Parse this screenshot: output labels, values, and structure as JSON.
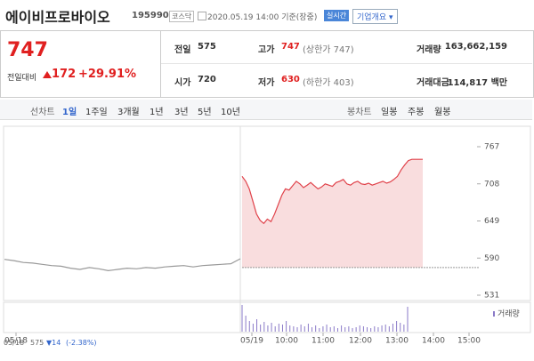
{
  "header": {
    "name": "에이비프로바이오",
    "code": "195990",
    "market": "코스닥",
    "datetime": "2020.05.19 14:00 기준(장중)",
    "realtime": "실시간",
    "company": "기업개요"
  },
  "quote": {
    "price": "747",
    "change_label": "전일대비",
    "change": "172",
    "rate": "+29.91%"
  },
  "stats": [
    [
      {
        "label": "전일",
        "value": "575"
      },
      {
        "label": "고가",
        "value": "747",
        "note": "(상한가 747)"
      },
      {
        "label": "거래량",
        "value": "163,662,159"
      }
    ],
    [
      {
        "label": "시가",
        "value": "720"
      },
      {
        "label": "저가",
        "value": "630",
        "note": "(하한가 403)"
      },
      {
        "label": "거래대금",
        "value": "114,817 백만"
      }
    ]
  ],
  "tabs": {
    "line": "선차트",
    "periods": [
      "1일",
      "1주일",
      "3개월",
      "1년",
      "3년",
      "5년",
      "10년"
    ],
    "candle": "봉차트",
    "candle_periods": [
      "일봉",
      "주봉",
      "월봉"
    ]
  },
  "chart_data": {
    "type": "line",
    "ylim": [
      531,
      767
    ],
    "yticks": [
      767,
      708,
      649,
      590,
      531
    ],
    "baseline": 575,
    "xticks": [
      "05/18",
      "05/19",
      "10:00",
      "11:00",
      "12:00",
      "13:00",
      "14:00",
      "15:00"
    ],
    "series": [
      {
        "color": "#999999",
        "values": [
          588,
          586,
          583,
          582,
          580,
          578,
          577,
          574,
          572,
          575,
          573,
          570,
          572,
          574,
          573,
          575,
          574,
          576,
          577,
          578,
          576,
          578,
          579,
          580,
          581,
          589
        ]
      },
      {
        "color": "#e0424a",
        "values": [
          720,
          712,
          700,
          680,
          660,
          650,
          645,
          652,
          648,
          660,
          675,
          690,
          700,
          698,
          705,
          712,
          708,
          702,
          706,
          710,
          705,
          700,
          703,
          708,
          706,
          704,
          710,
          712,
          715,
          708,
          706,
          710,
          712,
          708,
          707,
          709,
          706,
          708,
          710,
          712,
          709,
          711,
          715,
          720,
          730,
          738,
          745,
          747,
          747,
          747,
          747
        ]
      }
    ],
    "volume_label": "거래량",
    "volume": [
      30,
      18,
      12,
      9,
      14,
      8,
      11,
      7,
      10,
      6,
      9,
      8,
      12,
      7,
      6,
      5,
      8,
      6,
      9,
      5,
      7,
      4,
      6,
      8,
      5,
      6,
      4,
      7,
      5,
      6,
      4,
      5,
      7,
      6,
      5,
      4,
      6,
      5,
      7,
      8,
      6,
      9,
      12,
      10,
      8,
      28
    ]
  },
  "footer": {
    "date": "05/18",
    "close": "575",
    "change": "▼14",
    "rate": "(-2.38%)"
  }
}
